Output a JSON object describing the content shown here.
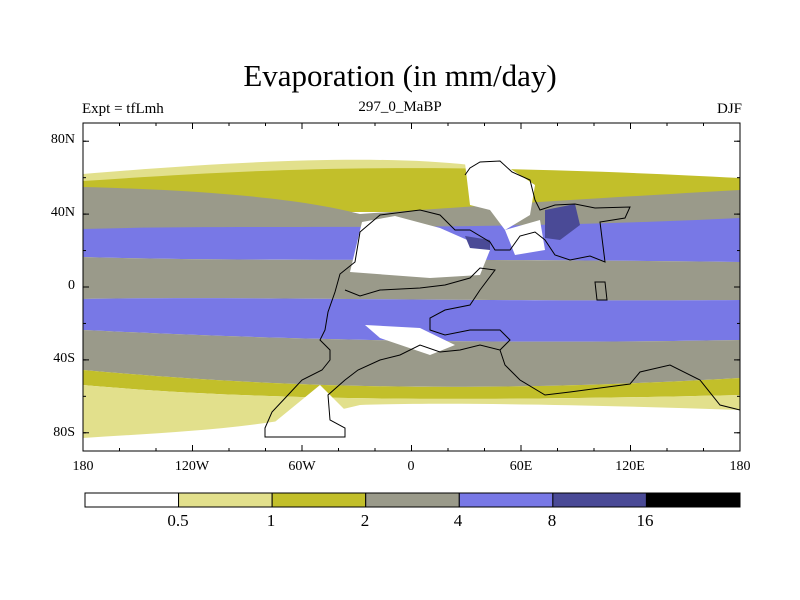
{
  "title": "Evaporation (in mm/day)",
  "subtitle_left": "Expt = tfLmh",
  "subtitle_center": "297_0_MaBP",
  "subtitle_right": "DJF",
  "latitude_ticks": [
    "80N",
    "40N",
    "0",
    "40S",
    "80S"
  ],
  "longitude_ticks": [
    "180",
    "120W",
    "60W",
    "0",
    "60E",
    "120E",
    "180"
  ],
  "colorbar": {
    "labels": [
      "0.5",
      "1",
      "2",
      "4",
      "8",
      "16"
    ],
    "colors": [
      "#ffffff",
      "#e2e08c",
      "#c2bf2a",
      "#9a9a8a",
      "#7878e6",
      "#4a4a96",
      "#000000"
    ]
  },
  "chart_data": {
    "type": "heatmap",
    "title": "Evaporation (in mm/day)",
    "variable": "Evaporation",
    "units": "mm/day",
    "experiment": "tfLmh",
    "time": "297_0_MaBP",
    "season": "DJF",
    "levels": [
      0.5,
      1,
      2,
      4,
      8,
      16
    ],
    "x_range": [
      -180,
      180
    ],
    "y_range": [
      -90,
      90
    ],
    "approx_zonal_bands": [
      {
        "lat_range": [
          60,
          90
        ],
        "value_class": "<0.5"
      },
      {
        "lat_range": [
          50,
          60
        ],
        "value_class": "1-2"
      },
      {
        "lat_range": [
          35,
          50
        ],
        "value_class": "2-4"
      },
      {
        "lat_range": [
          10,
          30
        ],
        "value_class": "4-8"
      },
      {
        "lat_range": [
          -10,
          10
        ],
        "value_class": "2-4"
      },
      {
        "lat_range": [
          -30,
          -10
        ],
        "value_class": "4-8"
      },
      {
        "lat_range": [
          -50,
          -30
        ],
        "value_class": "2-4"
      },
      {
        "lat_range": [
          -60,
          -50
        ],
        "value_class": "1-2"
      },
      {
        "lat_range": [
          -90,
          -65
        ],
        "value_class": "<0.5"
      }
    ]
  }
}
